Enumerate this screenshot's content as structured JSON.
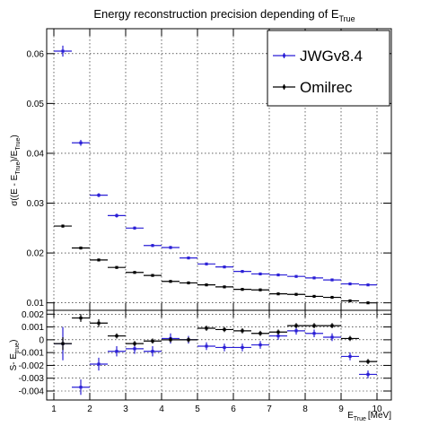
{
  "chart_data": [
    {
      "type": "scatter",
      "title": "Energy reconstruction precision depending of E",
      "title_sub": "True",
      "ylabel": "σ((E - E",
      "ylabel_sub1": "True",
      "ylabel_mid": ")/E",
      "ylabel_sub2": "True",
      "ylabel_end": ")",
      "xlim": [
        0.8,
        10.4
      ],
      "ylim": [
        0.0085,
        0.065
      ],
      "xticks": [
        1,
        2,
        3,
        4,
        5,
        6,
        7,
        8,
        9,
        10
      ],
      "yticks": [
        0.01,
        0.02,
        0.03,
        0.04,
        0.05,
        0.06
      ],
      "ytick_labels": [
        "0.01",
        "0.02",
        "0.03",
        "0.04",
        "0.05",
        "0.06"
      ],
      "grid": true,
      "legend_position": "top-right",
      "series": [
        {
          "name": "JWGv8.4",
          "color": "#2a1fd6",
          "x": [
            1.25,
            1.75,
            2.25,
            2.75,
            3.25,
            3.75,
            4.25,
            4.75,
            5.25,
            5.75,
            6.25,
            6.75,
            7.25,
            7.75,
            8.25,
            8.75,
            9.25,
            9.75
          ],
          "y": [
            0.0605,
            0.0421,
            0.0316,
            0.0275,
            0.025,
            0.0215,
            0.0211,
            0.019,
            0.0178,
            0.0172,
            0.0163,
            0.0158,
            0.0156,
            0.0153,
            0.015,
            0.0146,
            0.0138,
            0.0136
          ],
          "yerr": [
            0.0011,
            0.0006,
            0.0004,
            0.0004,
            0.0003,
            0.0003,
            0.0003,
            0.0002,
            0.0002,
            0.0002,
            0.0002,
            0.0002,
            0.0002,
            0.0002,
            0.0002,
            0.0002,
            0.0002,
            0.0002
          ],
          "xerr": 0.25
        },
        {
          "name": "Omilrec",
          "color": "#000000",
          "x": [
            1.25,
            1.75,
            2.25,
            2.75,
            3.25,
            3.75,
            4.25,
            4.75,
            5.25,
            5.75,
            6.25,
            6.75,
            7.25,
            7.75,
            8.25,
            8.75,
            9.25,
            9.75
          ],
          "y": [
            0.0254,
            0.021,
            0.0186,
            0.0171,
            0.0161,
            0.0155,
            0.0143,
            0.014,
            0.0136,
            0.0132,
            0.0127,
            0.0126,
            0.0118,
            0.0117,
            0.0113,
            0.0111,
            0.0104,
            0.01
          ],
          "yerr": [
            0.0003,
            0.0002,
            0.0002,
            0.0002,
            0.0002,
            0.0002,
            0.0001,
            0.0001,
            0.0001,
            0.0001,
            0.0001,
            0.0001,
            0.0001,
            0.0001,
            0.0001,
            0.0001,
            0.0001,
            0.0001
          ],
          "xerr": 0.25
        }
      ]
    },
    {
      "type": "scatter",
      "xlabel": "E",
      "xlabel_sub": "True",
      "xlabel_unit": "[MeV]",
      "ylabel": "S",
      "ylabel_middle": "- E",
      "ylabel_sub": "true",
      "ylabel_end": ")",
      "xlim": [
        0.8,
        10.4
      ],
      "ylim": [
        -0.0047,
        0.0023
      ],
      "xticks": [
        1,
        2,
        3,
        4,
        5,
        6,
        7,
        8,
        9,
        10
      ],
      "yticks": [
        0.002,
        0.001,
        0,
        -0.001,
        -0.002,
        -0.003,
        -0.004
      ],
      "ytick_labels": [
        "0.002",
        "0.001",
        "0",
        "-0.001",
        "-0.002",
        "-0.003",
        "-0.004"
      ],
      "grid": true,
      "series": [
        {
          "name": "JWGv8.4",
          "color": "#2a1fd6",
          "x": [
            1.25,
            1.75,
            2.25,
            2.75,
            3.25,
            3.75,
            4.25,
            4.75,
            5.25,
            5.75,
            6.25,
            6.75,
            7.25,
            7.75,
            8.25,
            8.75,
            9.25,
            9.75
          ],
          "y": [
            -0.0003,
            -0.0037,
            -0.0019,
            -0.0009,
            -0.0007,
            -0.0009,
            0.0001,
            0.0,
            -0.0005,
            -0.0006,
            -0.0006,
            -0.0004,
            0.0003,
            0.0007,
            0.0005,
            0.0002,
            -0.0013,
            -0.0027
          ],
          "yerr": [
            0.0013,
            0.0006,
            0.0005,
            0.0004,
            0.0004,
            0.0004,
            0.0004,
            0.0003,
            0.0003,
            0.0003,
            0.0003,
            0.0003,
            0.0003,
            0.0003,
            0.0003,
            0.0003,
            0.0003,
            0.0003
          ],
          "xerr": 0.25
        },
        {
          "name": "Omilrec",
          "color": "#000000",
          "x": [
            1.25,
            1.75,
            2.25,
            2.75,
            3.25,
            3.75,
            4.25,
            4.75,
            5.25,
            5.75,
            6.25,
            6.75,
            7.25,
            7.75,
            8.25,
            8.75,
            9.25,
            9.75
          ],
          "y": [
            -0.0003,
            0.0017,
            0.0013,
            0.0003,
            -0.0003,
            -0.0001,
            0.0,
            0.0,
            0.0009,
            0.0008,
            0.0007,
            0.0005,
            0.0006,
            0.0011,
            0.0011,
            0.0011,
            0.0001,
            -0.0017
          ],
          "yerr": [
            0.0005,
            0.0003,
            0.0003,
            0.0002,
            0.0002,
            0.0002,
            0.0002,
            0.0002,
            0.0002,
            0.0002,
            0.0002,
            0.0002,
            0.0002,
            0.0002,
            0.0002,
            0.0002,
            0.0002,
            0.0002
          ],
          "xerr": 0.25
        }
      ]
    }
  ]
}
